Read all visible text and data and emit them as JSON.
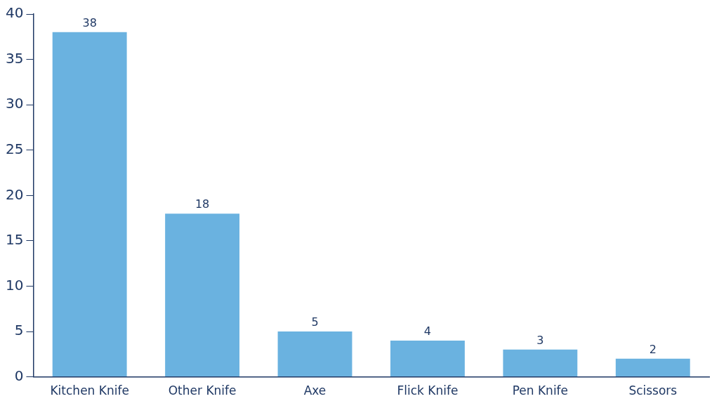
{
  "chart_data": {
    "type": "bar",
    "categories": [
      "Kitchen Knife",
      "Other Knife",
      "Axe",
      "Flick Knife",
      "Pen Knife",
      "Scissors"
    ],
    "values": [
      38,
      18,
      5,
      4,
      3,
      2
    ],
    "color": "#6ab2e0",
    "ylim": [
      0,
      40
    ],
    "yticks": [
      0,
      5,
      10,
      15,
      20,
      25,
      30,
      35,
      40
    ],
    "grid": false,
    "legend": false,
    "data_labels": true
  }
}
